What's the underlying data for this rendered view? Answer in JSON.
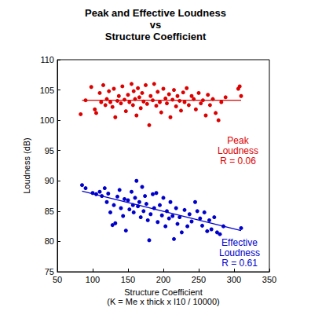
{
  "chart_data": {
    "type": "scatter",
    "title": "Peak and Effective Loudness\nvs\nStructure Coefficient",
    "x_label": "Structure Coefficient\n(K = Me x thick x I10 / 10000)",
    "y_label": "Loudness (dB)",
    "xlim": [
      50,
      350
    ],
    "xticks": [
      50,
      100,
      150,
      200,
      250,
      300,
      350
    ],
    "ylim": [
      75,
      110
    ],
    "yticks": [
      75,
      80,
      85,
      90,
      95,
      100,
      105,
      110
    ],
    "grid": false,
    "series": [
      {
        "type": "scatter",
        "color": "#dd0000",
        "marker": "circle",
        "x": [
          83,
          90,
          98,
          103,
          105,
          110,
          112,
          115,
          118,
          120,
          123,
          125,
          128,
          130,
          132,
          135,
          137,
          140,
          142,
          145,
          147,
          150,
          152,
          155,
          157,
          158,
          160,
          162,
          164,
          166,
          168,
          170,
          172,
          175,
          177,
          180,
          182,
          185,
          187,
          190,
          192,
          195,
          197,
          200,
          203,
          205,
          208,
          210,
          213,
          215,
          218,
          220,
          223,
          225,
          228,
          230,
          233,
          236,
          240,
          243,
          246,
          250,
          253,
          256,
          260,
          263,
          266,
          270,
          274,
          278,
          282,
          288,
          306,
          308,
          310
        ],
        "values": [
          101,
          103.3,
          105.5,
          101.8,
          101.2,
          104.5,
          103,
          105.8,
          102.5,
          103.5,
          104.8,
          103,
          102.2,
          105.2,
          100.5,
          103.2,
          104,
          102.8,
          105.6,
          103.4,
          101.5,
          104.2,
          103,
          106,
          102.5,
          104.8,
          103.5,
          100.8,
          105.3,
          103.8,
          102,
          104.5,
          103.1,
          105.8,
          102.7,
          99.2,
          104,
          103.3,
          106,
          102.4,
          104.7,
          103,
          101.3,
          105.2,
          103.6,
          102.8,
          104.3,
          100.5,
          103.4,
          105,
          102.3,
          104,
          103.2,
          101.6,
          104.6,
          103,
          105.3,
          102.5,
          104,
          103.5,
          101.8,
          104.5,
          102.8,
          103.3,
          100.8,
          104.2,
          102.5,
          103.5,
          101.2,
          100,
          103,
          103.8,
          105.2,
          105.6,
          104
        ]
      },
      {
        "type": "line",
        "color": "#dd0000",
        "line_style": "solid",
        "x": [
          85,
          310
        ],
        "values": [
          103.3,
          103.3
        ]
      },
      {
        "type": "scatter",
        "color": "#0000cc",
        "marker": "circle",
        "x": [
          85,
          90,
          100,
          105,
          110,
          113,
          117,
          120,
          122,
          125,
          128,
          130,
          132,
          135,
          138,
          140,
          143,
          145,
          147,
          150,
          152,
          155,
          157,
          158,
          160,
          162,
          164,
          166,
          168,
          170,
          172,
          174,
          176,
          178,
          180,
          182,
          185,
          187,
          190,
          192,
          195,
          198,
          200,
          203,
          205,
          208,
          210,
          213,
          215,
          218,
          220,
          223,
          226,
          230,
          234,
          237,
          240,
          245,
          248,
          252,
          255,
          258,
          262,
          265,
          268,
          272,
          276,
          280,
          285,
          310
        ],
        "values": [
          89.3,
          88.8,
          88,
          87.8,
          88.2,
          87.5,
          88.8,
          86.5,
          87.9,
          84.8,
          82.7,
          86,
          83,
          87.4,
          88.5,
          85.5,
          84.2,
          87,
          81.8,
          86.8,
          85.3,
          88.2,
          86,
          84.8,
          87.2,
          90,
          85.8,
          86.5,
          84,
          89,
          85,
          87.5,
          86.2,
          83.5,
          80.2,
          84.5,
          87.8,
          85.5,
          88,
          83.2,
          86,
          84.3,
          87.2,
          82.5,
          85,
          83.8,
          86.5,
          84.2,
          80.4,
          85.5,
          82.9,
          84,
          81.5,
          85.2,
          82.5,
          84.5,
          83.3,
          86.5,
          85,
          83.8,
          82.6,
          84.8,
          81.7,
          83.5,
          82,
          84,
          81.5,
          81.2,
          82.5,
          82.2
        ]
      },
      {
        "type": "line",
        "color": "#0000cc",
        "line_style": "solid",
        "x": [
          85,
          310
        ],
        "values": [
          88.3,
          81.8
        ]
      }
    ],
    "annotations": [
      {
        "text": "Peak\nLoudness\nR = 0.06",
        "color": "#dd0000"
      },
      {
        "text": "Effective\nLoudness\nR = 0.61",
        "color": "#0000cc"
      }
    ]
  }
}
